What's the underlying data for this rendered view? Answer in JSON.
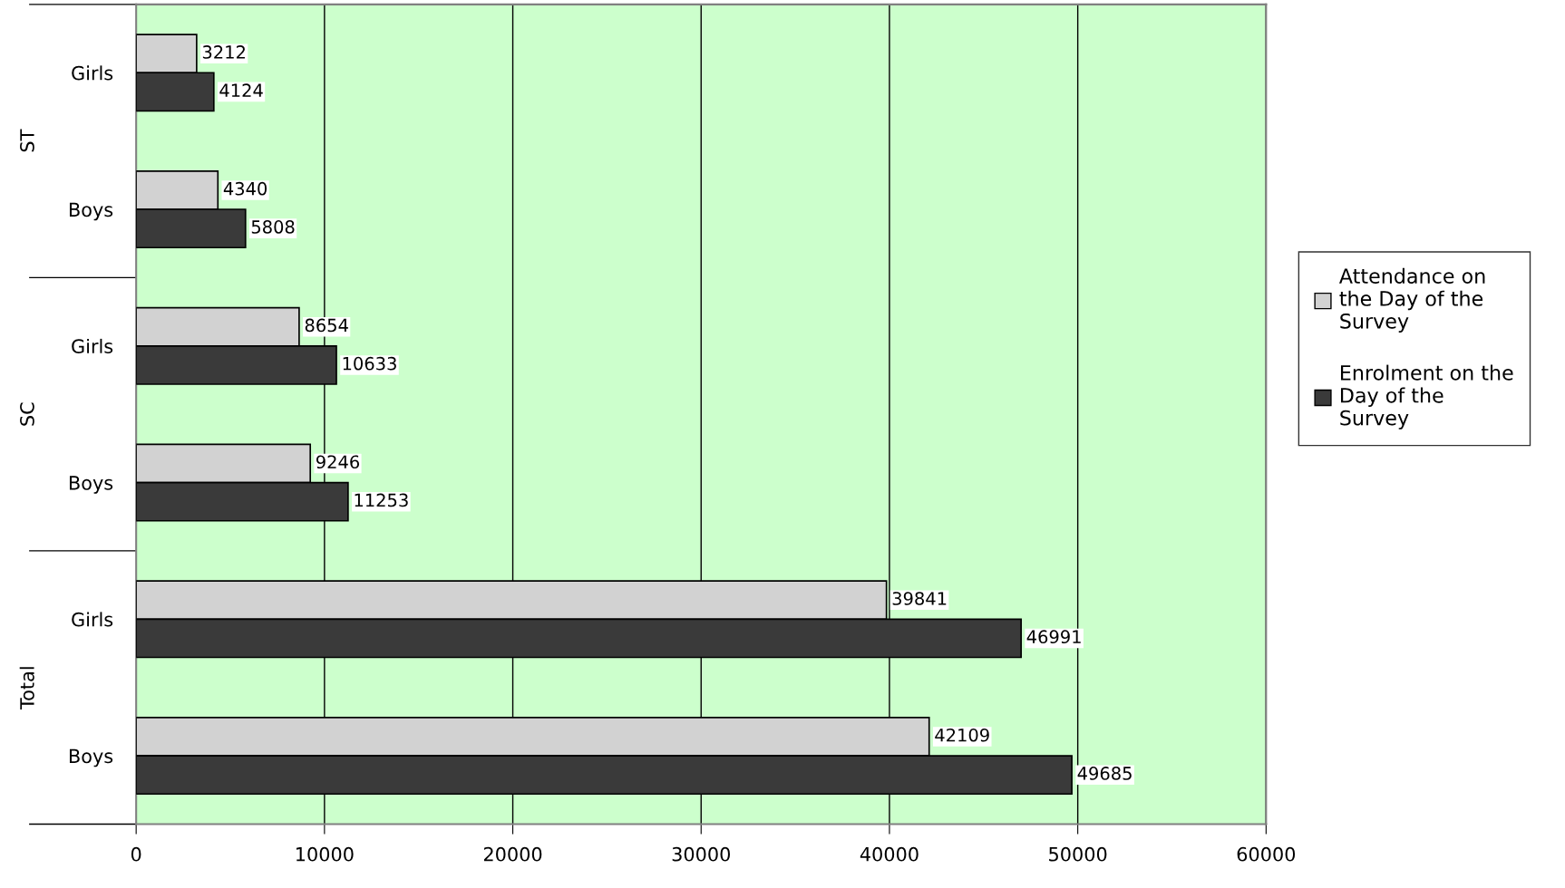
{
  "chart_data": {
    "type": "bar",
    "orientation": "horizontal",
    "categories": [
      "Girls",
      "Boys",
      "Girls",
      "Boys",
      "Girls",
      "Boys"
    ],
    "series": [
      {
        "name": "Attendance on the Day of the Survey",
        "color": "#d2d2d2",
        "values": [
          3212,
          4340,
          8654,
          9246,
          39841,
          42109
        ]
      },
      {
        "name": "Enrolment on the Day of the Survey",
        "color": "#3a3a3a",
        "values": [
          4124,
          5808,
          10633,
          11253,
          46991,
          49685
        ]
      }
    ],
    "annotations": [
      "ST",
      "SC",
      "Total"
    ],
    "xlim": [
      0,
      60000
    ],
    "xticks": [
      0,
      10000,
      20000,
      30000,
      40000,
      50000,
      60000
    ],
    "grid": "x",
    "legend": "right",
    "data_labels": true
  }
}
